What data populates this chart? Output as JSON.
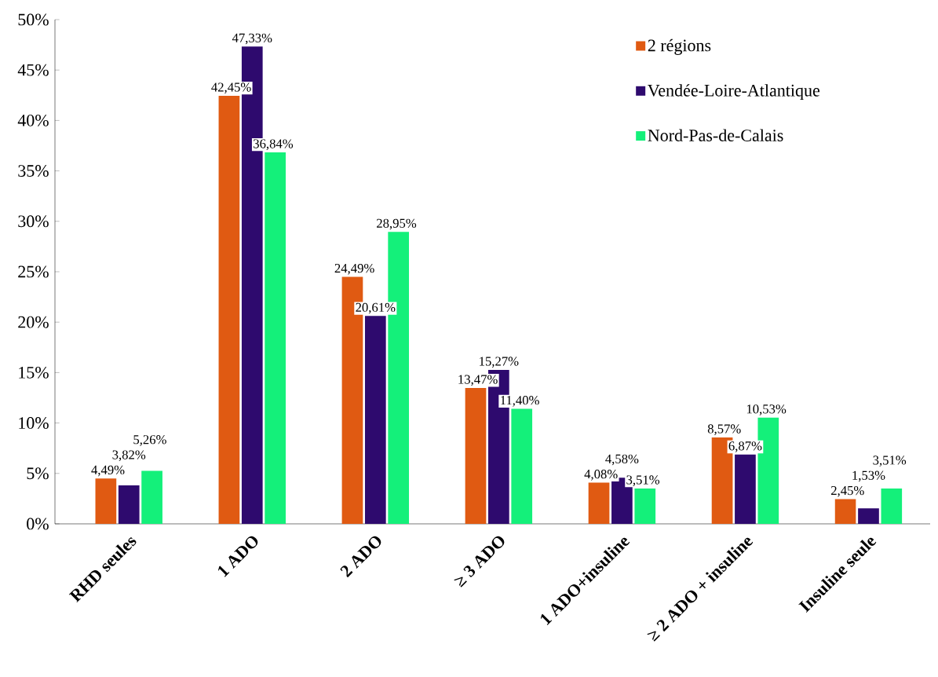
{
  "chart_data": {
    "type": "bar",
    "categories": [
      "RHD seules",
      "1 ADO",
      "2 ADO",
      "≥ 3 ADO",
      "1 ADO+insuline",
      "≥ 2 ADO + insuline",
      "Insuline seule"
    ],
    "series": [
      {
        "name": "2 régions",
        "color": "#e05a12",
        "values": [
          4.49,
          42.45,
          24.49,
          13.47,
          4.08,
          8.57,
          2.45
        ],
        "value_labels": [
          "4,49%",
          "42,45%",
          "24,49%",
          "13,47%",
          "4,08%",
          "8,57%",
          "2,45%"
        ]
      },
      {
        "name": "Vendée-Loire-Atlantique",
        "color": "#2e0a6e",
        "values": [
          3.82,
          47.33,
          20.61,
          15.27,
          4.58,
          6.87,
          1.53
        ],
        "value_labels": [
          "3,82%",
          "47,33%",
          "20,61%",
          "15,27%",
          "4,58%",
          "6,87%",
          "1,53%"
        ]
      },
      {
        "name": "Nord-Pas-de-Calais",
        "color": "#14f07a",
        "values": [
          5.26,
          36.84,
          28.95,
          11.4,
          3.51,
          10.53,
          3.51
        ],
        "value_labels": [
          "5,26%",
          "36,84%",
          "28,95%",
          "11,40%",
          "3,51%",
          "10,53%",
          "3,51%"
        ]
      }
    ],
    "ylim": [
      0,
      50
    ],
    "yticks": [
      {
        "value": 0,
        "label": "0%"
      },
      {
        "value": 5,
        "label": "5%"
      },
      {
        "value": 10,
        "label": "10%"
      },
      {
        "value": 15,
        "label": "15%"
      },
      {
        "value": 20,
        "label": "20%"
      },
      {
        "value": 25,
        "label": "25%"
      },
      {
        "value": 30,
        "label": "30%"
      },
      {
        "value": 35,
        "label": "35%"
      },
      {
        "value": 40,
        "label": "40%"
      },
      {
        "value": 45,
        "label": "45%"
      },
      {
        "value": 50,
        "label": "50%"
      }
    ],
    "grid": false,
    "legend": "top right"
  }
}
